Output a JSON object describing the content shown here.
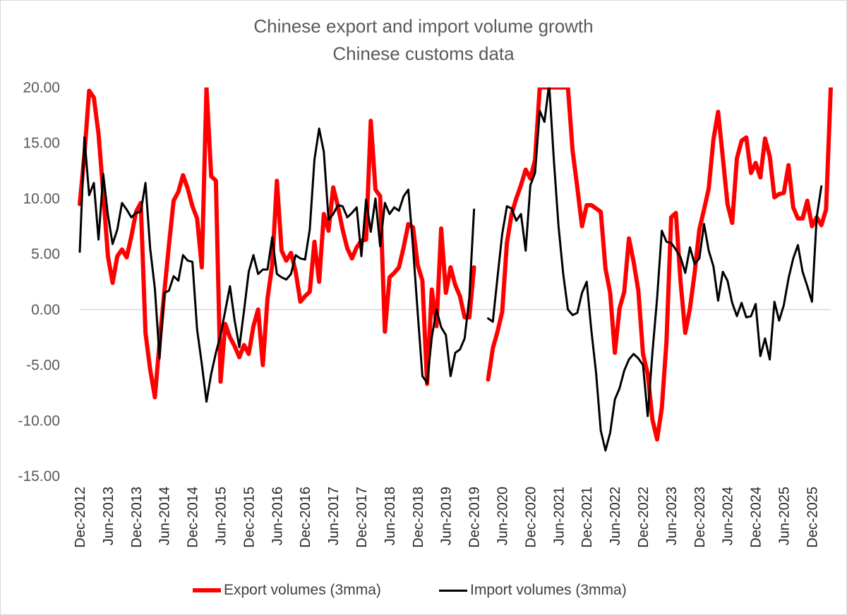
{
  "chart_data": {
    "type": "line",
    "title": "Chinese export and import volume growth",
    "subtitle": "Chinese customs data",
    "xlabel": "",
    "ylabel": "",
    "ylim": [
      -15,
      20
    ],
    "yticks": [
      "20.00",
      "15.00",
      "10.00",
      "5.00",
      "0.00",
      "-5.00",
      "-10.00",
      "-15.00"
    ],
    "x_start": "Dec-2012",
    "x_end": "Mar-2026",
    "x_tick_labels": [
      "Dec-2012",
      "Jun-2013",
      "Dec-2013",
      "Jun-2014",
      "Dec-2014",
      "Jun-2015",
      "Dec-2015",
      "Jun-2016",
      "Dec-2016",
      "Jun-2017",
      "Dec-2017",
      "Jun-2018",
      "Dec-2018",
      "Jun-2019",
      "Dec-2019",
      "Jun-2020",
      "Dec-2020",
      "Jun-2021",
      "Dec-2021",
      "Jun-2022",
      "Dec-2022",
      "Jun-2023",
      "Dec-2023",
      "Jun-2024",
      "Dec-2024",
      "Jun-2025",
      "Dec-2025"
    ],
    "legend_position": "bottom",
    "grid": false,
    "series": [
      {
        "name": "Export volumes (3mma)",
        "color": "#ff0000",
        "values": [
          9.5,
          14,
          19.7,
          19.1,
          15.8,
          10.5,
          4.8,
          2.4,
          4.8,
          5.4,
          4.7,
          6.6,
          8.8,
          9.6,
          -2.1,
          -5.4,
          -7.9,
          -3,
          1.5,
          5.8,
          9.8,
          10.6,
          12.1,
          10.9,
          9.3,
          8.2,
          3.8,
          20,
          12,
          11.6,
          -6.5,
          -1.3,
          -2.5,
          -3.3,
          -4.3,
          -3.2,
          -4,
          -1.5,
          0,
          -5,
          1,
          4,
          11.6,
          5.3,
          4.4,
          5.1,
          3.4,
          0.7,
          1.2,
          1.6,
          6.1,
          2.5,
          8.6,
          7.1,
          11,
          9.3,
          7.2,
          5.5,
          4.6,
          5.6,
          6.2,
          6.3,
          17,
          10.8,
          10.2,
          -2,
          2.9,
          3.3,
          3.8,
          5.6,
          7.7,
          7.4,
          4,
          2.6,
          -6.7,
          1.8,
          -1.5,
          7.3,
          1.5,
          3.8,
          2.2,
          1.2,
          -0.7,
          -0.7,
          3.8,
          null,
          null,
          -6.3,
          -3.5,
          -2,
          -0.2,
          6,
          8.6,
          10,
          11.2,
          12.6,
          11.8,
          13.5,
          20,
          20,
          20,
          20,
          20,
          20,
          20,
          14.3,
          11,
          7.5,
          9.4,
          9.4,
          9.1,
          8.8,
          3.7,
          1.5,
          -3.9,
          0.1,
          1.6,
          6.4,
          4.3,
          1.7,
          -4,
          -5.8,
          -9.9,
          -11.7,
          -8.9,
          -2.9,
          8.3,
          8.7,
          2.5,
          -2.1,
          0.1,
          3.3,
          7.2,
          9,
          10.9,
          15.3,
          17.8,
          13.7,
          9.5,
          7.8,
          13.6,
          15.2,
          15.5,
          12.3,
          13.2,
          11.9,
          15.4,
          13.8,
          10.1,
          10.4,
          10.5,
          13,
          9.2,
          8.2,
          8.2,
          9.8,
          7.5,
          8.3,
          7.6,
          9,
          20
        ]
      },
      {
        "name": "Import volumes (3mma)",
        "color": "#000000",
        "values": [
          5.2,
          15.5,
          10.3,
          11.4,
          6.3,
          12.2,
          8.5,
          5.9,
          7.2,
          9.6,
          9,
          8.3,
          8.7,
          8.8,
          11.4,
          5.5,
          1.9,
          -4.4,
          1.5,
          1.7,
          3,
          2.6,
          4.9,
          4.4,
          4.3,
          -1.8,
          -4.9,
          -8.3,
          -5.8,
          -3.9,
          -2.3,
          -0.1,
          2.1,
          -1,
          -3.4,
          -0.1,
          3.4,
          4.9,
          3.2,
          3.6,
          3.6,
          6.5,
          3.2,
          2.9,
          2.7,
          3.2,
          4.9,
          4.6,
          4.5,
          7.2,
          13.5,
          16.3,
          14.2,
          8.1,
          8.6,
          9.4,
          9.3,
          8.3,
          8.7,
          9.2,
          4.8,
          9.9,
          7,
          10,
          5.7,
          9.6,
          8.6,
          9.2,
          8.9,
          10.2,
          10.8,
          5.6,
          -0.3,
          -6,
          -6.6,
          -2.5,
          0,
          -1.6,
          -2.3,
          -6,
          -3.9,
          -3.6,
          -2.6,
          1.1,
          9,
          null,
          null,
          -0.8,
          -1.1,
          2.9,
          6.8,
          9.3,
          9.1,
          8,
          8.6,
          5.3,
          11.2,
          12.3,
          17.9,
          16.9,
          20.3,
          13.5,
          7.5,
          3.2,
          0,
          -0.5,
          -0.3,
          1.5,
          2.5,
          -1.9,
          -5.7,
          -10.9,
          -12.7,
          -11.1,
          -8.1,
          -7.1,
          -5.5,
          -4.5,
          -4,
          -4.4,
          -5,
          -9.6,
          -3.9,
          1,
          7.1,
          6.1,
          6,
          5.4,
          4.7,
          3.3,
          5.6,
          4.1,
          4.6,
          7.7,
          5.3,
          3.9,
          0.8,
          3.4,
          2.6,
          0.6,
          -0.6,
          0.6,
          -0.7,
          -0.6,
          0.5,
          -4.2,
          -2.6,
          -4.5,
          0.7,
          -1,
          0.4,
          2.8,
          4.6,
          5.8,
          3.4,
          2.1,
          0.7,
          8.3,
          11.1
        ]
      }
    ]
  }
}
